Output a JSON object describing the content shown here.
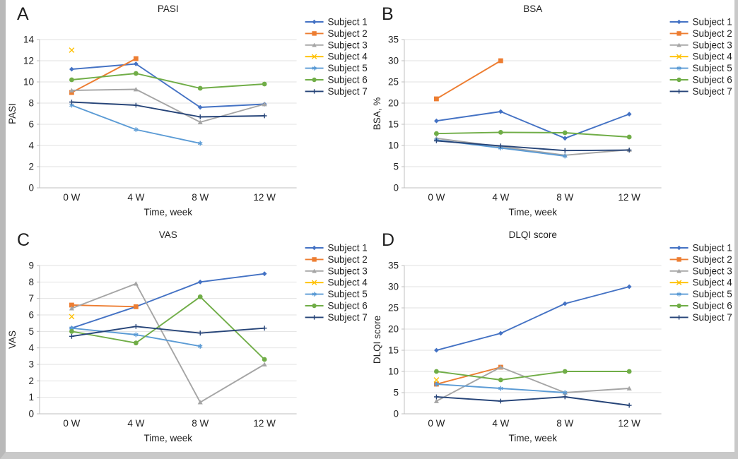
{
  "figure": {
    "x_axis_label": "Time, week",
    "categories": [
      "0 W",
      "4 W",
      "8 W",
      "12 W"
    ],
    "palette": {
      "subject1": "#4472C4",
      "subject2": "#ED7D31",
      "subject3": "#A5A5A5",
      "subject4": "#FFC000",
      "subject5": "#5B9BD5",
      "subject6": "#70AD47",
      "subject7": "#264478"
    },
    "gridline_color": "#e2e2e2",
    "axis_color": "#bfbfbf",
    "frame_color": "#c9c9c9"
  },
  "chart_data": [
    {
      "panel_label": "A",
      "type": "line",
      "title": "PASI",
      "xlabel": "Time, week",
      "ylabel": "PASI",
      "categories": [
        "0 W",
        "4 W",
        "8 W",
        "12 W"
      ],
      "ylim": [
        0,
        14
      ],
      "ytick_step": 2,
      "grid": true,
      "legend_position": "right",
      "series": [
        {
          "name": "Subject 1",
          "color": "#4472C4",
          "marker": "diamond",
          "values": [
            11.2,
            11.7,
            7.6,
            7.9
          ]
        },
        {
          "name": "Subject 2",
          "color": "#ED7D31",
          "marker": "square",
          "values": [
            9.0,
            12.2,
            null,
            null
          ]
        },
        {
          "name": "Subject 3",
          "color": "#A5A5A5",
          "marker": "triangle",
          "values": [
            9.2,
            9.3,
            6.2,
            7.9
          ]
        },
        {
          "name": "Subject 4",
          "color": "#FFC000",
          "marker": "x",
          "values": [
            13.0,
            null,
            null,
            null
          ]
        },
        {
          "name": "Subject 5",
          "color": "#5B9BD5",
          "marker": "asterisk",
          "values": [
            7.8,
            5.5,
            4.2,
            null
          ]
        },
        {
          "name": "Subject 6",
          "color": "#70AD47",
          "marker": "circle",
          "values": [
            10.2,
            10.8,
            9.4,
            9.8
          ]
        },
        {
          "name": "Subject 7",
          "color": "#264478",
          "marker": "plus",
          "values": [
            8.1,
            7.8,
            6.7,
            6.8
          ]
        }
      ]
    },
    {
      "panel_label": "B",
      "type": "line",
      "title": "BSA",
      "xlabel": "Time, week",
      "ylabel": "BSA, %",
      "categories": [
        "0 W",
        "4 W",
        "8 W",
        "12 W"
      ],
      "ylim": [
        0,
        35
      ],
      "ytick_step": 5,
      "grid": true,
      "legend_position": "right",
      "series": [
        {
          "name": "Subject 1",
          "color": "#4472C4",
          "marker": "diamond",
          "values": [
            15.8,
            18.0,
            11.7,
            17.4
          ]
        },
        {
          "name": "Subject 2",
          "color": "#ED7D31",
          "marker": "square",
          "values": [
            21.0,
            30.0,
            null,
            null
          ]
        },
        {
          "name": "Subject 3",
          "color": "#A5A5A5",
          "marker": "triangle",
          "values": [
            11.7,
            9.7,
            7.7,
            9.0
          ]
        },
        {
          "name": "Subject 4",
          "color": "#FFC000",
          "marker": "x",
          "values": [
            null,
            null,
            null,
            null
          ]
        },
        {
          "name": "Subject 5",
          "color": "#5B9BD5",
          "marker": "asterisk",
          "values": [
            11.3,
            9.4,
            7.5,
            null
          ]
        },
        {
          "name": "Subject 6",
          "color": "#70AD47",
          "marker": "circle",
          "values": [
            12.8,
            13.1,
            13.0,
            12.0
          ]
        },
        {
          "name": "Subject 7",
          "color": "#264478",
          "marker": "plus",
          "values": [
            11.1,
            9.9,
            8.8,
            8.9
          ]
        }
      ]
    },
    {
      "panel_label": "C",
      "type": "line",
      "title": "VAS",
      "xlabel": "Time, week",
      "ylabel": "VAS",
      "categories": [
        "0 W",
        "4 W",
        "8 W",
        "12 W"
      ],
      "ylim": [
        0,
        9
      ],
      "ytick_step": 1,
      "grid": true,
      "legend_position": "right",
      "series": [
        {
          "name": "Subject 1",
          "color": "#4472C4",
          "marker": "diamond",
          "values": [
            5.2,
            6.5,
            8.0,
            8.5
          ]
        },
        {
          "name": "Subject 2",
          "color": "#ED7D31",
          "marker": "square",
          "values": [
            6.6,
            6.5,
            null,
            null
          ]
        },
        {
          "name": "Subject 3",
          "color": "#A5A5A5",
          "marker": "triangle",
          "values": [
            6.4,
            7.9,
            0.7,
            3.0
          ]
        },
        {
          "name": "Subject 4",
          "color": "#FFC000",
          "marker": "x",
          "values": [
            5.9,
            null,
            null,
            null
          ]
        },
        {
          "name": "Subject 5",
          "color": "#5B9BD5",
          "marker": "asterisk",
          "values": [
            5.2,
            4.8,
            4.1,
            null
          ]
        },
        {
          "name": "Subject 6",
          "color": "#70AD47",
          "marker": "circle",
          "values": [
            5.0,
            4.3,
            7.1,
            3.3
          ]
        },
        {
          "name": "Subject 7",
          "color": "#264478",
          "marker": "plus",
          "values": [
            4.7,
            5.3,
            4.9,
            5.2
          ]
        }
      ]
    },
    {
      "panel_label": "D",
      "type": "line",
      "title": "DLQI score",
      "xlabel": "Time, week",
      "ylabel": "DLQI score",
      "categories": [
        "0 W",
        "4 W",
        "8 W",
        "12 W"
      ],
      "ylim": [
        0,
        35
      ],
      "ytick_step": 5,
      "grid": true,
      "legend_position": "right",
      "series": [
        {
          "name": "Subject 1",
          "color": "#4472C4",
          "marker": "diamond",
          "values": [
            15,
            19,
            26,
            30
          ]
        },
        {
          "name": "Subject 2",
          "color": "#ED7D31",
          "marker": "square",
          "values": [
            7,
            11,
            null,
            null
          ]
        },
        {
          "name": "Subject 3",
          "color": "#A5A5A5",
          "marker": "triangle",
          "values": [
            3,
            11,
            5,
            6
          ]
        },
        {
          "name": "Subject 4",
          "color": "#FFC000",
          "marker": "x",
          "values": [
            8,
            null,
            null,
            null
          ]
        },
        {
          "name": "Subject 5",
          "color": "#5B9BD5",
          "marker": "asterisk",
          "values": [
            7,
            6,
            5,
            null
          ]
        },
        {
          "name": "Subject 6",
          "color": "#70AD47",
          "marker": "circle",
          "values": [
            10,
            8,
            10,
            10
          ]
        },
        {
          "name": "Subject 7",
          "color": "#264478",
          "marker": "plus",
          "values": [
            4,
            3,
            4,
            2
          ]
        }
      ]
    }
  ]
}
